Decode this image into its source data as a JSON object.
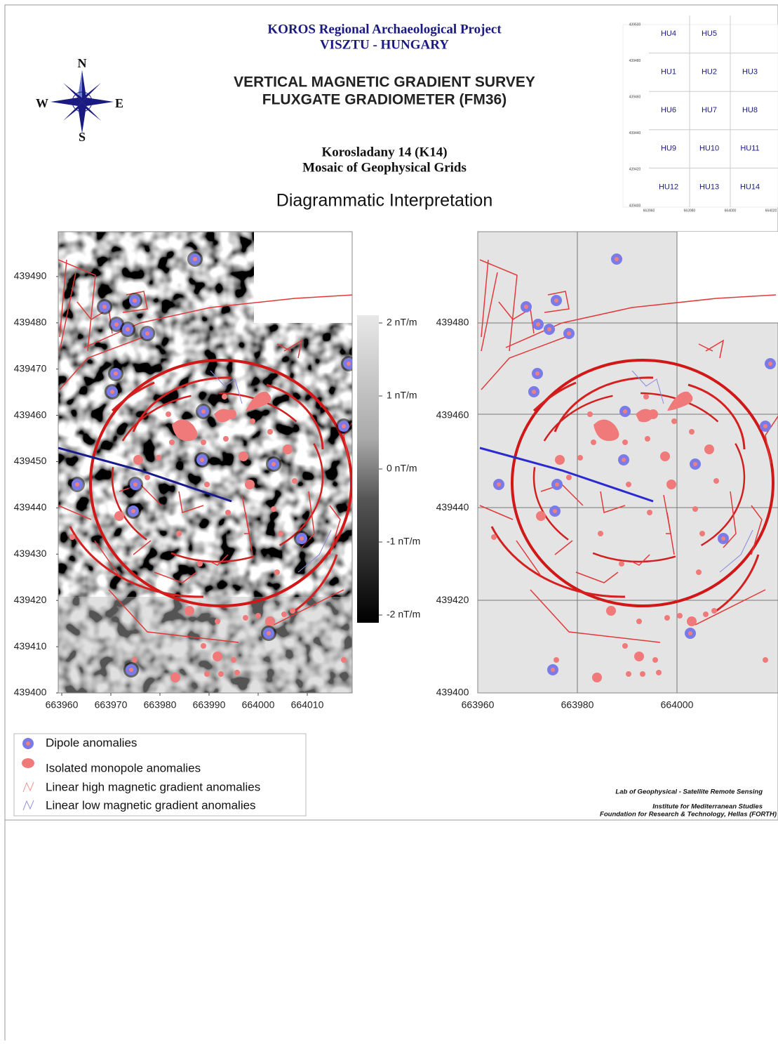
{
  "header": {
    "project": "KOROS Regional Archaeological Project",
    "location": "VISZTU - HUNGARY",
    "survey": "VERTICAL MAGNETIC GRADIENT SURVEY",
    "instrument": "FLUXGATE GRADIOMETER (FM36)",
    "site": "Korosladany 14 (K14)",
    "subtitle": "Mosaic of Geophysical Grids",
    "section": "Diagrammatic Interpretation"
  },
  "compass": {
    "north": "N",
    "south": "S",
    "east": "E",
    "west": "W"
  },
  "grid_index": {
    "rows": [
      [
        "HU4",
        "HU5"
      ],
      [
        "HU1",
        "HU2",
        "HU3"
      ],
      [
        "HU6",
        "HU7",
        "HU8"
      ],
      [
        "HU9",
        "HU10",
        "HU11"
      ],
      [
        "HU12",
        "HU13",
        "HU14"
      ]
    ],
    "y_labels": [
      "439500",
      "439480",
      "439460",
      "439440",
      "439420",
      "439400"
    ],
    "x_labels": [
      "663960",
      "663980",
      "664000",
      "664020"
    ]
  },
  "magnetic_map": {
    "x_labels": [
      "663960",
      "663970",
      "663980",
      "663990",
      "664000",
      "664010"
    ],
    "y_labels": [
      "439400",
      "439410",
      "439420",
      "439430",
      "439440",
      "439450",
      "439460",
      "439470",
      "439480",
      "439490"
    ],
    "colorbar": [
      "2 nT/m",
      "1 nT/m",
      "0 nT/m",
      "-1 nT/m",
      "-2 nT/m"
    ]
  },
  "interpretation_map": {
    "x_labels": [
      "663960",
      "663980",
      "664000"
    ],
    "y_labels": [
      "439400",
      "439420",
      "439440",
      "439460",
      "439480"
    ]
  },
  "legend": [
    "Dipole anomalies",
    "Isolated monopole anomalies",
    "Linear high magnetic gradient anomalies",
    "Linear low magnetic gradient anomalies"
  ],
  "credits": [
    "Lab of Geophysical - Satellite Remote Sensing",
    "Institute for Mediterranean Studies",
    "Foundation for Research & Technology, Hellas (FORTH)"
  ]
}
